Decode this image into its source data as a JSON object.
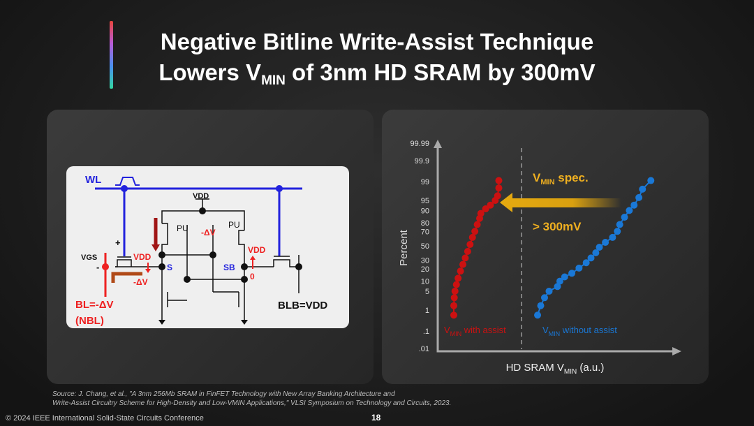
{
  "slide": {
    "title_line1": "Negative Bitline Write-Assist Technique",
    "title_line2_pre": "Lowers V",
    "title_line2_sub": "MIN",
    "title_line2_post": " of 3nm HD SRAM by 300mV",
    "page_number": "18",
    "source_line1": "Source: J. Chang, et al., \"A 3nm 256Mb SRAM in FinFET Technology with New Array Banking Architecture and",
    "source_line2": "Write-Assist Circuitry Scheme for High-Density and Low-VMIN Applications,\" VLSI Symposium on Technology and Circuits, 2023.",
    "footer": "© 2024 IEEE International Solid-State Circuits Conference"
  },
  "circuit": {
    "wl": "WL",
    "vdd_top": "VDD",
    "pu_left": "PU",
    "pu_right": "PU",
    "dv_gate": "-ΔV",
    "plus": "+",
    "minus": "-",
    "vgs": "VGS",
    "vdd_s": "VDD",
    "dv_s": "-ΔV",
    "s": "S",
    "sb": "SB",
    "vdd_sb": "VDD",
    "zero": "0",
    "bl": "BL=-ΔV",
    "nbl": "(NBL)",
    "blb": "BLB=VDD"
  },
  "chart_data": {
    "type": "scatter",
    "xlabel_pre": "HD SRAM V",
    "xlabel_sub": "MIN",
    "xlabel_post": " (a.u.)",
    "ylabel": "Percent",
    "y_scale": "normal-probability",
    "yticks": [
      "99.99",
      "99.9",
      "99",
      "95",
      "90",
      "80",
      "70",
      "50",
      "30",
      "20",
      "10",
      "5",
      "1",
      ".1",
      ".01"
    ],
    "ytick_values": [
      99.99,
      99.9,
      99,
      95,
      90,
      80,
      70,
      50,
      30,
      20,
      10,
      5,
      1,
      0.1,
      0.01
    ],
    "xlim": [
      0,
      100
    ],
    "spec_line_x": 35,
    "annotation_spec_pre": "V",
    "annotation_spec_sub": "MIN",
    "annotation_spec_post": " spec.",
    "annotation_shift": "> 300mV",
    "colors": {
      "with": "#cc1111",
      "without": "#1a78d6",
      "arrow": "#e6aa10"
    },
    "series": [
      {
        "name_pre": "V",
        "name_sub": "MIN",
        "name_post": " with assist",
        "points": [
          [
            6.7,
            0.6
          ],
          [
            6.7,
            1.5
          ],
          [
            6.9,
            3
          ],
          [
            7.2,
            5
          ],
          [
            7.8,
            8
          ],
          [
            8.5,
            12
          ],
          [
            9.5,
            18
          ],
          [
            10.5,
            25
          ],
          [
            11.5,
            33
          ],
          [
            12.5,
            42
          ],
          [
            13.5,
            52
          ],
          [
            14.5,
            62
          ],
          [
            15.5,
            70
          ],
          [
            16.5,
            78
          ],
          [
            17.5,
            84
          ],
          [
            18,
            88
          ],
          [
            20,
            91
          ],
          [
            22,
            93
          ],
          [
            24,
            95
          ],
          [
            25,
            96.5
          ],
          [
            25.5,
            98.2
          ],
          [
            25.5,
            99.1
          ]
        ]
      },
      {
        "name_pre": "V",
        "name_sub": "MIN",
        "name_post": " without assist",
        "points": [
          [
            41.7,
            0.6
          ],
          [
            43,
            1.5
          ],
          [
            44.6,
            3
          ],
          [
            46.5,
            5
          ],
          [
            50,
            7
          ],
          [
            51,
            10
          ],
          [
            53,
            13
          ],
          [
            56,
            16
          ],
          [
            59,
            21
          ],
          [
            62,
            27
          ],
          [
            64,
            33
          ],
          [
            66,
            40
          ],
          [
            67.5,
            48
          ],
          [
            70,
            55
          ],
          [
            73,
            62
          ],
          [
            75,
            70
          ],
          [
            76,
            78
          ],
          [
            78,
            85
          ],
          [
            80,
            90
          ],
          [
            82,
            93
          ],
          [
            84,
            96
          ],
          [
            85.5,
            98
          ],
          [
            89,
            99.1
          ]
        ]
      }
    ]
  }
}
